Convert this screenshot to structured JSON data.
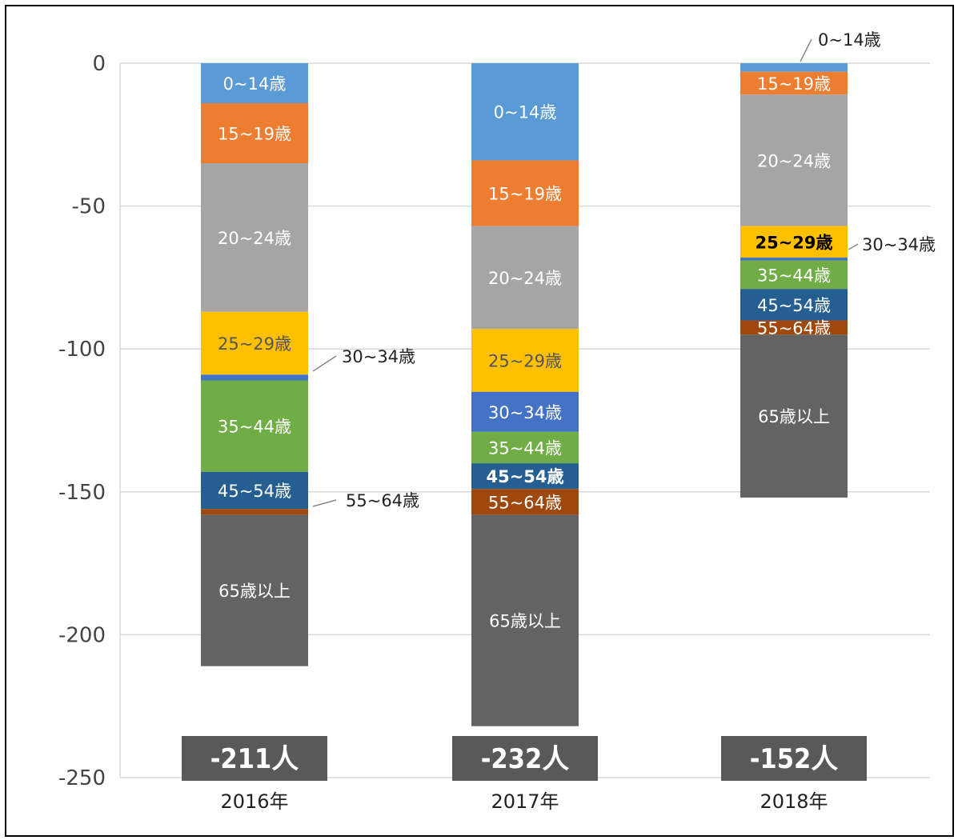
{
  "chart_data": {
    "type": "bar",
    "stacked": true,
    "categories": [
      "2016年",
      "2017年",
      "2018年"
    ],
    "totals": [
      "-211人",
      "-232人",
      "-152人"
    ],
    "ylim": [
      -250,
      0
    ],
    "yticks": [
      0,
      -50,
      -100,
      -150,
      -200,
      -250
    ],
    "grid": true,
    "series": [
      {
        "name": "0~14歳",
        "color": "#5b9bd5",
        "values": [
          -14,
          -34,
          -3
        ]
      },
      {
        "name": "15~19歳",
        "color": "#ed7d31",
        "values": [
          -21,
          -23,
          -8
        ]
      },
      {
        "name": "20~24歳",
        "color": "#a5a5a5",
        "values": [
          -52,
          -36,
          -46
        ]
      },
      {
        "name": "25~29歳",
        "color": "#ffc000",
        "values": [
          -22,
          -22,
          -11
        ]
      },
      {
        "name": "30~34歳",
        "color": "#4472c4",
        "values": [
          -2,
          -14,
          -1
        ]
      },
      {
        "name": "35~44歳",
        "color": "#70ad47",
        "values": [
          -32,
          -11,
          -10
        ]
      },
      {
        "name": "45~54歳",
        "color": "#255e91",
        "values": [
          -13,
          -9,
          -11
        ]
      },
      {
        "name": "55~64歳",
        "color": "#9e480e",
        "values": [
          -2,
          -9,
          -5
        ]
      },
      {
        "name": "65歳以上",
        "color": "#636363",
        "values": [
          -53,
          -74,
          -57
        ]
      }
    ]
  }
}
